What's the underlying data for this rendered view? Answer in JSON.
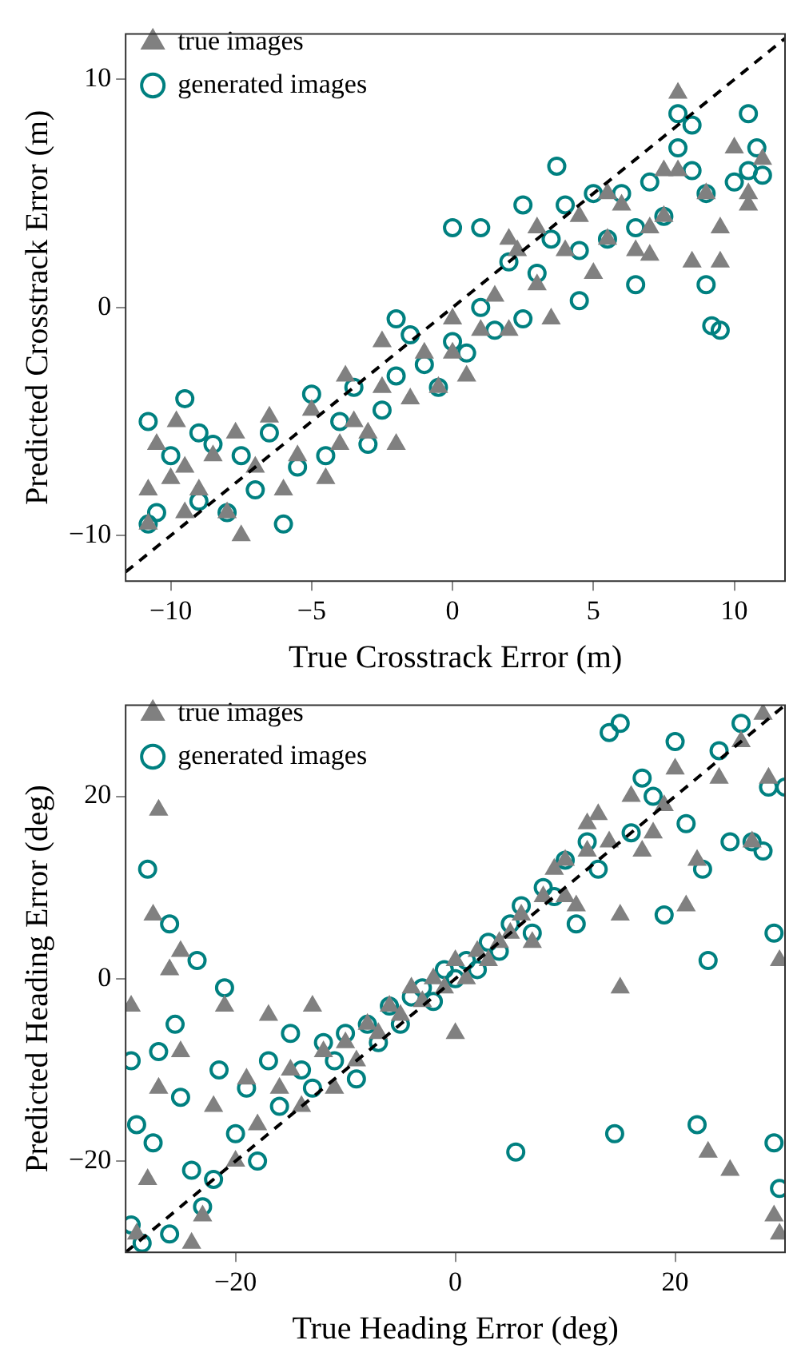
{
  "chart_data": [
    {
      "type": "scatter",
      "xlabel": "True Crosstrack Error (m)",
      "ylabel": "Predicted Crosstrack Error (m)",
      "xlim": [
        -11.6,
        11.8
      ],
      "ylim": [
        -12,
        12
      ],
      "xticks": [
        {
          "value": -10,
          "label": "−10"
        },
        {
          "value": -5,
          "label": "−5"
        },
        0,
        5,
        10
      ],
      "yticks": [
        {
          "value": -10,
          "label": "−10"
        },
        0,
        10
      ],
      "legend": "top left",
      "grid": false,
      "series": [
        {
          "name": "true images",
          "color": "#808080",
          "marker": "triangle",
          "x": [
            -10.8,
            -10.5,
            -10,
            -9.8,
            -9.5,
            -9,
            -8.5,
            -8,
            -7.7,
            -7.5,
            -7,
            -6.5,
            -6,
            -5.5,
            -5,
            -4.5,
            -4,
            -3.8,
            -3,
            -2.5,
            -2.5,
            -2,
            -1.5,
            -1,
            -0.5,
            0,
            0,
            0.5,
            1,
            1.5,
            2,
            2.3,
            3,
            3,
            3.5,
            4,
            4.5,
            5,
            5.5,
            6,
            6.5,
            7,
            7.5,
            8,
            8,
            8.5,
            9,
            9.5,
            10,
            10.5,
            10.5,
            11,
            -10.8,
            -9.5,
            -3.5,
            2,
            7.5,
            5.5,
            9.5,
            7
          ],
          "values": [
            -9.5,
            -6,
            -7.5,
            -5,
            -9,
            -8,
            -6.5,
            -9,
            -5.5,
            -10,
            -7,
            -4.8,
            -8,
            -6.5,
            -4.5,
            -7.5,
            -6,
            -3,
            -5.5,
            -3.5,
            -1.5,
            -6,
            -4,
            -2,
            -3.5,
            -2,
            -0.5,
            -3,
            -1,
            0.5,
            -1,
            2.5,
            1,
            3.5,
            -0.5,
            2.5,
            4,
            1.5,
            3,
            4.5,
            2.5,
            3.5,
            4,
            6,
            9.4,
            2,
            5,
            3.5,
            7,
            5,
            4.5,
            6.5,
            -8,
            -7,
            -5,
            3,
            6,
            5,
            2,
            2.3
          ]
        },
        {
          "name": "generated images",
          "color": "#008080",
          "marker": "circle",
          "x": [
            -10.8,
            -10.5,
            -10,
            -9.5,
            -9,
            -8.5,
            -8,
            -7.5,
            -7,
            -6.5,
            -6,
            -5.5,
            -5,
            -4.5,
            -4,
            -3.5,
            -3,
            -2.5,
            -2,
            -1.5,
            -1,
            -0.5,
            0,
            0.5,
            1,
            1,
            1.5,
            2,
            2.5,
            3,
            3.5,
            3.7,
            4,
            4.5,
            5,
            5.5,
            6,
            6.5,
            7,
            7.5,
            8,
            8,
            8.5,
            9,
            9,
            9.2,
            9.5,
            10,
            10.5,
            10.8,
            10.5,
            -10.8,
            -9,
            -2,
            0,
            2.5,
            4.5,
            6.5,
            8.5,
            11
          ],
          "values": [
            -5,
            -9,
            -6.5,
            -4,
            -8.5,
            -6,
            -9,
            -6.5,
            -8,
            -5.5,
            -9.5,
            -7,
            -3.8,
            -6.5,
            -5,
            -3.5,
            -6,
            -4.5,
            -3,
            -1.2,
            -2.5,
            -3.5,
            -1.5,
            -2,
            0,
            3.5,
            -1,
            2,
            4.5,
            1.5,
            3,
            6.2,
            4.5,
            2.5,
            5,
            3,
            5,
            1,
            5.5,
            4,
            7,
            8.5,
            6,
            1,
            5,
            -0.8,
            -1,
            5.5,
            8.5,
            7,
            6,
            -9.5,
            -5.5,
            -0.5,
            3.5,
            -0.5,
            0.3,
            3.5,
            8,
            5.8
          ]
        },
        {
          "type": "line",
          "color": "#000000",
          "line_style": "dashed",
          "marker": "none",
          "x": [
            -11.6,
            11.8
          ],
          "values": [
            -11.6,
            11.8
          ]
        }
      ]
    },
    {
      "type": "scatter",
      "xlabel": "True Heading Error (deg)",
      "ylabel": "Predicted Heading Error (deg)",
      "xlim": [
        -30,
        30
      ],
      "ylim": [
        -30,
        30
      ],
      "xticks": [
        {
          "value": -20,
          "label": "−20"
        },
        0,
        20
      ],
      "yticks": [
        {
          "value": -20,
          "label": "−20"
        },
        0,
        20
      ],
      "legend": "top left",
      "grid": false,
      "series": [
        {
          "name": "true images",
          "color": "#808080",
          "marker": "triangle",
          "x": [
            -29.5,
            -29,
            -28,
            -27.5,
            -27,
            -27,
            -26,
            -25,
            -25,
            -24,
            -23,
            -22,
            -21,
            -20,
            -19,
            -18,
            -17,
            -16,
            -15,
            -14,
            -13,
            -12,
            -11,
            -10,
            -9,
            -8,
            -7,
            -6,
            -5,
            -4,
            -3,
            -2,
            -1,
            0,
            0,
            1,
            2,
            3,
            4,
            5,
            6,
            7,
            8,
            9,
            10,
            11,
            12,
            13,
            14,
            15,
            15,
            16,
            17,
            18,
            19,
            20,
            21,
            22,
            23,
            24,
            25,
            26,
            27,
            28,
            28.5,
            29.5,
            29.5,
            29,
            10,
            12
          ],
          "values": [
            -3,
            -28,
            -22,
            7,
            18.5,
            -12,
            1,
            3,
            -8,
            -29,
            -26,
            -14,
            -3,
            -20,
            -11,
            -16,
            -4,
            -12,
            -10,
            -14,
            -3,
            -8,
            -12,
            -7,
            -9,
            -5,
            -6,
            -3,
            -4,
            -1,
            -2.5,
            0,
            -1,
            -6,
            2,
            0,
            3,
            2,
            4,
            5,
            7,
            4,
            9,
            12,
            13,
            8,
            14,
            18,
            15,
            7,
            -1,
            20,
            14,
            16,
            19,
            23,
            8,
            13,
            -19,
            22,
            -21,
            26,
            15,
            29,
            22,
            2,
            -28,
            -26,
            9,
            17
          ]
        },
        {
          "name": "generated images",
          "color": "#008080",
          "marker": "circle",
          "x": [
            -29.5,
            -29,
            -28.5,
            -28,
            -27.5,
            -27,
            -26,
            -25.5,
            -25,
            -24,
            -23.5,
            -23,
            -22,
            -21.5,
            -21,
            -20,
            -19,
            -18,
            -17,
            -16,
            -15,
            -14,
            -13,
            -12,
            -11,
            -10,
            -9,
            -8,
            -7,
            -6,
            -5,
            -4,
            -3,
            -2,
            -1,
            0,
            1,
            2,
            3,
            4,
            5,
            5.5,
            6,
            7,
            8,
            9,
            10,
            11,
            12,
            13,
            14,
            14.5,
            15,
            16,
            17,
            18,
            19,
            20,
            21,
            22,
            22.5,
            24,
            25,
            26,
            27,
            28,
            28.5,
            29,
            29,
            29.5,
            30,
            -29.5,
            -26,
            23
          ],
          "values": [
            -9,
            -16,
            -29,
            12,
            -18,
            -8,
            6,
            -5,
            -13,
            -21,
            2,
            -25,
            -22,
            -10,
            -1,
            -17,
            -12,
            -20,
            -9,
            -14,
            -6,
            -10,
            -12,
            -7,
            -9,
            -6,
            -11,
            -5,
            -7,
            -3,
            -5,
            -2,
            -1,
            -2.5,
            1,
            0,
            2,
            1,
            4,
            3,
            6,
            -19,
            8,
            5,
            10,
            9,
            13,
            6,
            15,
            12,
            27,
            -17,
            28,
            16,
            22,
            20,
            7,
            26,
            17,
            -16,
            12,
            25,
            15,
            28,
            15,
            14,
            21,
            5,
            -18,
            -23,
            21,
            -27,
            -28,
            2
          ]
        },
        {
          "type": "line",
          "color": "#000000",
          "line_style": "dashed",
          "marker": "none",
          "x": [
            -30,
            30
          ],
          "values": [
            -30,
            30
          ]
        }
      ]
    }
  ]
}
